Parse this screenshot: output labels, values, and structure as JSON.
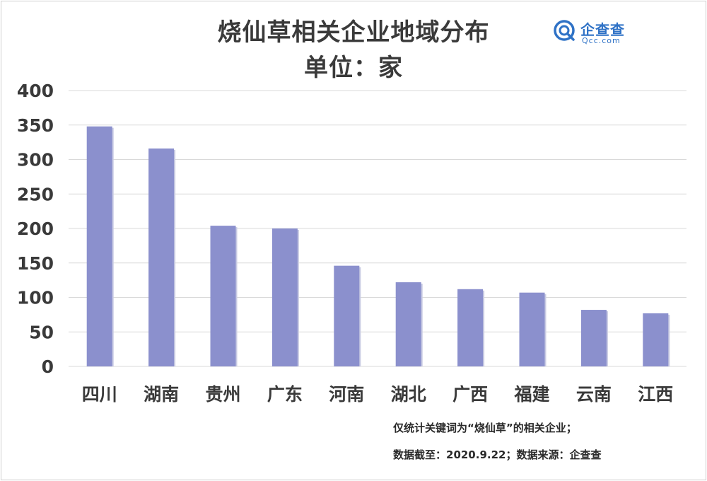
{
  "header": {
    "title": "烧仙草相关企业地域分布",
    "subtitle": "单位：家"
  },
  "logo": {
    "cn": "企查查",
    "en": "Qcc.com",
    "icon": "qcc-logo-icon",
    "color": "#2f72c6"
  },
  "chart_data": {
    "type": "bar",
    "title": "烧仙草相关企业地域分布",
    "subtitle": "单位：家",
    "categories": [
      "四川",
      "湖南",
      "贵州",
      "广东",
      "河南",
      "湖北",
      "广西",
      "福建",
      "云南",
      "江西"
    ],
    "values": [
      348,
      316,
      204,
      200,
      146,
      122,
      112,
      107,
      82,
      77
    ],
    "yticks": [
      "0",
      "50",
      "100",
      "150",
      "200",
      "250",
      "300",
      "350",
      "400"
    ],
    "ylim": [
      0,
      400
    ],
    "grid": true,
    "bar_color": "#8b90cd",
    "grid_color": "#d9d9d9"
  },
  "notes": {
    "line1": "仅统计关键词为“烧仙草”的相关企业；",
    "line2": "数据截至：2020.9.22；数据来源：企查查"
  }
}
